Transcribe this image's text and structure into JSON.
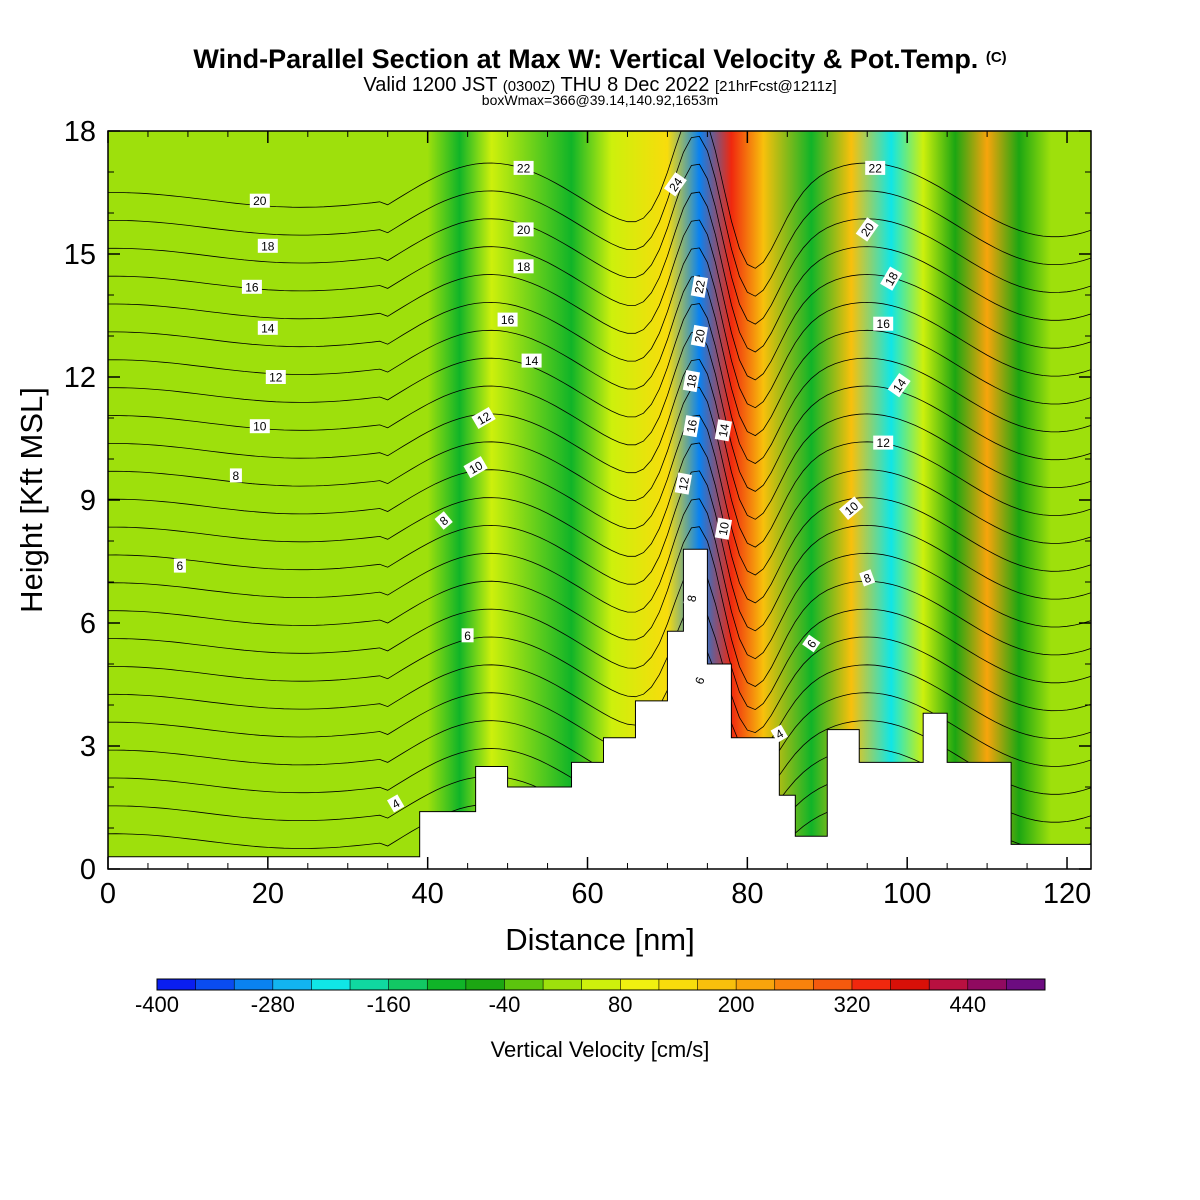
{
  "header": {
    "title": "Wind-Parallel Section at Max W: Vertical Velocity & Pot.Temp.",
    "copyright": "(C)",
    "valid_prefix": "Valid 1200 JST",
    "valid_utc": "(0300Z)",
    "valid_date": "THU 8 Dec 2022",
    "forecast": "[21hrFcst@1211z]",
    "box_info": "boxWmax=366@39.14,140.92,1653m"
  },
  "chart_data": {
    "type": "heatmap",
    "xlabel": "Distance [nm]",
    "ylabel": "Height [Kft MSL]",
    "xlim": [
      0,
      123
    ],
    "ylim": [
      0,
      18
    ],
    "x_ticks": [
      0,
      20,
      40,
      60,
      80,
      100,
      120
    ],
    "y_ticks": [
      0,
      3,
      6,
      9,
      12,
      15,
      18
    ],
    "grid": false,
    "colorbar": {
      "label": "Vertical Velocity [cm/s]",
      "min": -400,
      "max": 480,
      "step": 40,
      "tick_labels": [
        -400,
        -280,
        -160,
        -40,
        80,
        200,
        320,
        440
      ],
      "colors": [
        "#0a1ef0",
        "#0a4cf0",
        "#0a82f0",
        "#12b4f0",
        "#10e6e6",
        "#10d8a0",
        "#12c864",
        "#10b428",
        "#1ca612",
        "#5cc40e",
        "#9ee00c",
        "#cdf00c",
        "#f0f010",
        "#f8dc0c",
        "#f8c00c",
        "#f8a40c",
        "#f8820c",
        "#f55a0e",
        "#f0280e",
        "#d81008",
        "#b81040",
        "#900a60",
        "#6c0c80"
      ]
    },
    "velocity_bands": [
      {
        "x": 44,
        "w": -90
      },
      {
        "x": 48,
        "w": 60
      },
      {
        "x": 58,
        "w": -90
      },
      {
        "x": 63,
        "w": 40
      },
      {
        "x": 70,
        "w": 150
      },
      {
        "x": 74,
        "w": -300
      },
      {
        "x": 78,
        "w": 330
      },
      {
        "x": 82,
        "w": 160
      },
      {
        "x": 88,
        "w": -100
      },
      {
        "x": 93,
        "w": 160
      },
      {
        "x": 98,
        "w": -240
      },
      {
        "x": 102,
        "w": 60
      },
      {
        "x": 106,
        "w": -80
      },
      {
        "x": 110,
        "w": 210
      },
      {
        "x": 114,
        "w": -80
      }
    ],
    "terrain": [
      [
        0,
        0.3
      ],
      [
        39,
        0.3
      ],
      [
        39,
        1.4
      ],
      [
        46,
        1.4
      ],
      [
        46,
        2.5
      ],
      [
        50,
        2.5
      ],
      [
        50,
        2.0
      ],
      [
        58,
        2.0
      ],
      [
        58,
        2.6
      ],
      [
        62,
        2.6
      ],
      [
        62,
        3.2
      ],
      [
        66,
        3.2
      ],
      [
        66,
        4.1
      ],
      [
        70,
        4.1
      ],
      [
        70,
        5.8
      ],
      [
        72,
        5.8
      ],
      [
        72,
        7.8
      ],
      [
        75,
        7.8
      ],
      [
        75,
        5.0
      ],
      [
        78,
        5.0
      ],
      [
        78,
        3.2
      ],
      [
        84,
        3.2
      ],
      [
        84,
        1.8
      ],
      [
        86,
        1.8
      ],
      [
        86,
        0.8
      ],
      [
        90,
        0.8
      ],
      [
        90,
        3.4
      ],
      [
        94,
        3.4
      ],
      [
        94,
        2.6
      ],
      [
        102,
        2.6
      ],
      [
        102,
        3.8
      ],
      [
        105,
        3.8
      ],
      [
        105,
        2.6
      ],
      [
        113,
        2.6
      ],
      [
        113,
        0.6
      ],
      [
        123,
        0.6
      ],
      [
        123,
        0.3
      ],
      [
        123,
        0
      ]
    ],
    "contour_levels": [
      4,
      6,
      8,
      10,
      12,
      14,
      16,
      18,
      20,
      22,
      24
    ],
    "contour_labels": [
      {
        "text": "4",
        "x": 36,
        "y": 1.6,
        "rot": -30
      },
      {
        "text": "4",
        "x": 84,
        "y": 3.3,
        "rot": -30
      },
      {
        "text": "6",
        "x": 9,
        "y": 7.4,
        "rot": 0
      },
      {
        "text": "6",
        "x": 45,
        "y": 5.7,
        "rot": 0
      },
      {
        "text": "6",
        "x": 88,
        "y": 5.5,
        "rot": -55
      },
      {
        "text": "6",
        "x": 74,
        "y": 4.6,
        "rot": -70
      },
      {
        "text": "8",
        "x": 16,
        "y": 9.6,
        "rot": 0
      },
      {
        "text": "8",
        "x": 42,
        "y": 8.5,
        "rot": -40
      },
      {
        "text": "8",
        "x": 73,
        "y": 6.6,
        "rot": -80
      },
      {
        "text": "8",
        "x": 95,
        "y": 7.1,
        "rot": -20
      },
      {
        "text": "10",
        "x": 19,
        "y": 10.8,
        "rot": 0
      },
      {
        "text": "10",
        "x": 46,
        "y": 9.8,
        "rot": -30
      },
      {
        "text": "10",
        "x": 77,
        "y": 8.3,
        "rot": -80
      },
      {
        "text": "10",
        "x": 93,
        "y": 8.8,
        "rot": -40
      },
      {
        "text": "12",
        "x": 21,
        "y": 12.0,
        "rot": 0
      },
      {
        "text": "12",
        "x": 47,
        "y": 11.0,
        "rot": -30
      },
      {
        "text": "12",
        "x": 72,
        "y": 9.4,
        "rot": -80
      },
      {
        "text": "12",
        "x": 97,
        "y": 10.4,
        "rot": 0
      },
      {
        "text": "14",
        "x": 20,
        "y": 13.2,
        "rot": 0
      },
      {
        "text": "14",
        "x": 53,
        "y": 12.4,
        "rot": 0
      },
      {
        "text": "14",
        "x": 77,
        "y": 10.7,
        "rot": -80
      },
      {
        "text": "14",
        "x": 99,
        "y": 11.8,
        "rot": -55
      },
      {
        "text": "16",
        "x": 18,
        "y": 14.2,
        "rot": 0
      },
      {
        "text": "16",
        "x": 50,
        "y": 13.4,
        "rot": 0
      },
      {
        "text": "16",
        "x": 73,
        "y": 10.8,
        "rot": -80
      },
      {
        "text": "16",
        "x": 97,
        "y": 13.3,
        "rot": 0
      },
      {
        "text": "18",
        "x": 20,
        "y": 15.2,
        "rot": 0
      },
      {
        "text": "18",
        "x": 52,
        "y": 14.7,
        "rot": 0
      },
      {
        "text": "18",
        "x": 73,
        "y": 11.9,
        "rot": -80
      },
      {
        "text": "18",
        "x": 98,
        "y": 14.4,
        "rot": -60
      },
      {
        "text": "20",
        "x": 19,
        "y": 16.3,
        "rot": 0
      },
      {
        "text": "20",
        "x": 52,
        "y": 15.6,
        "rot": 0
      },
      {
        "text": "20",
        "x": 74,
        "y": 13.0,
        "rot": -80
      },
      {
        "text": "20",
        "x": 95,
        "y": 15.6,
        "rot": -55
      },
      {
        "text": "22",
        "x": 52,
        "y": 17.1,
        "rot": 0
      },
      {
        "text": "22",
        "x": 74,
        "y": 14.2,
        "rot": -80
      },
      {
        "text": "22",
        "x": 96,
        "y": 17.1,
        "rot": 0
      },
      {
        "text": "24",
        "x": 71,
        "y": 16.7,
        "rot": -55
      }
    ]
  }
}
